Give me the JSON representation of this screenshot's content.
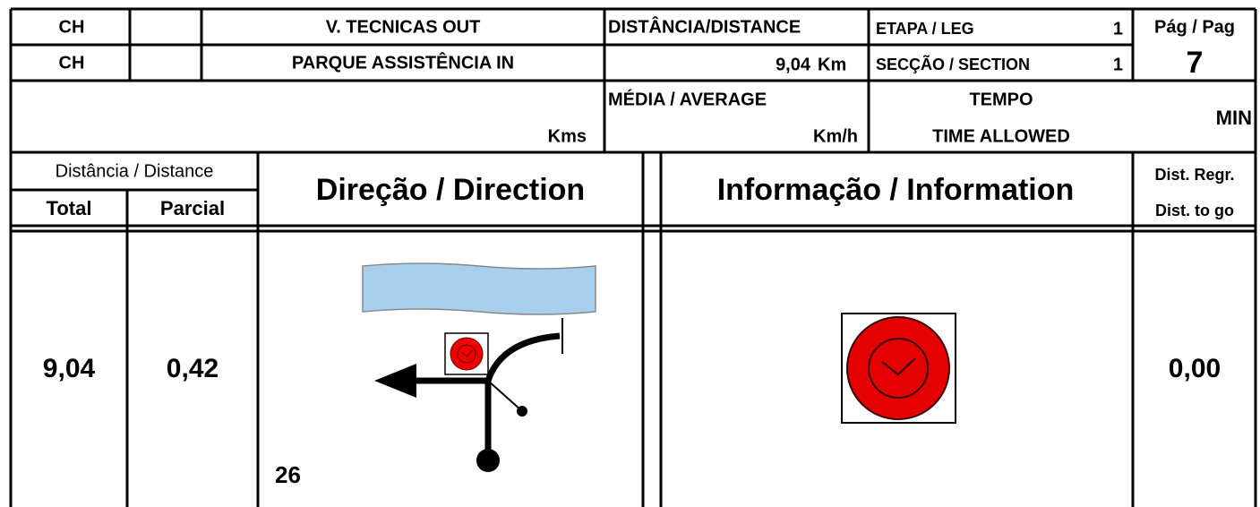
{
  "header": {
    "row1": {
      "cp_label": "CH",
      "cp_name": "V. TECNICAS OUT",
      "distance_label": "DISTÂNCIA/DISTANCE",
      "leg_label": "ETAPA / LEG",
      "leg": "1",
      "page_label": "Pág / Pag"
    },
    "row2": {
      "cp_label": "CH",
      "cp_name": "PARQUE ASSISTÊNCIA IN",
      "distance": "9,04",
      "distance_unit": "Km",
      "section_label": "SECÇÃO / SECTION",
      "section": "1",
      "page": "7"
    },
    "row3": {
      "kms_unit": "Kms",
      "average_label": "MÉDIA / AVERAGE",
      "average_unit": "Km/h",
      "time_label_pt": "TEMPO",
      "time_label_en": "TIME ALLOWED",
      "time_unit": "MIN"
    }
  },
  "columns": {
    "distance": "Distância / Distance",
    "total": "Total",
    "partial": "Parcial",
    "direction": "Direção / Direction",
    "information": "Informação / Information",
    "dist_regr": "Dist. Regr.",
    "dist_to_go": "Dist. to go"
  },
  "entry": {
    "total": "9,04",
    "partial": "0,42",
    "number": "26",
    "dist_to_go": "0,00"
  }
}
